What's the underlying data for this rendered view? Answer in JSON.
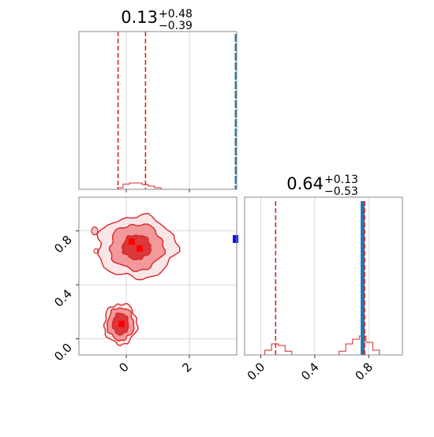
{
  "colors": {
    "red": "#d62728",
    "red_light": "#f08b8e",
    "blue": "#1f77b4",
    "marker_blue": "#1010ff",
    "marker_red": "#ff0000",
    "frame": "#8a8a8a",
    "grid": "#d0d0d0"
  },
  "chart_data": [
    {
      "type": "histogram",
      "panel": "top-left marginal",
      "title_value": "0.13",
      "title_plus": "+0.48",
      "title_minus": "−0.39",
      "xlim": [
        -1.5,
        3.5
      ],
      "grid": true,
      "quantile_lines": [
        -0.26,
        0.61
      ],
      "truth_line": 3.5,
      "bins_x": [
        -0.3,
        -0.1,
        0.1,
        0.3,
        0.5,
        0.7,
        0.9,
        1.1
      ],
      "bins_y": [
        0.003,
        0.01,
        0.012,
        0.012,
        0.009,
        0.006,
        0.003,
        0.0
      ]
    },
    {
      "type": "contour",
      "panel": "bottom-left 2D",
      "xlim": [
        -1.5,
        3.5
      ],
      "ylim": [
        -0.12,
        1.05
      ],
      "xticks": [
        0,
        2
      ],
      "xtick_labels": [
        "0",
        "2"
      ],
      "yticks": [
        0.0,
        0.4,
        0.8
      ],
      "ytick_labels": [
        "0.0",
        "0.4",
        "0.8"
      ],
      "grid": true,
      "upper_mode": {
        "center": [
          0.33,
          0.68
        ],
        "levels_radius": [
          [
            0.45,
            0.09
          ],
          [
            0.85,
            0.17
          ],
          [
            1.25,
            0.23
          ]
        ]
      },
      "lower_mode": {
        "center": [
          -0.18,
          0.11
        ],
        "levels_radius": [
          [
            0.25,
            0.08
          ],
          [
            0.42,
            0.12
          ],
          [
            0.52,
            0.15
          ]
        ]
      },
      "red_markers": [
        [
          0.17,
          0.72
        ],
        [
          0.42,
          0.67
        ],
        [
          -0.15,
          0.11
        ]
      ],
      "blue_marker": [
        3.5,
        0.74
      ]
    },
    {
      "type": "histogram",
      "panel": "bottom-right marginal",
      "title_value": "0.64",
      "title_plus": "+0.13",
      "title_minus": "−0.53",
      "xlim": [
        -0.12,
        1.05
      ],
      "xticks": [
        0.0,
        0.4,
        0.8
      ],
      "xtick_labels": [
        "0.0",
        "0.4",
        "0.8"
      ],
      "grid": true,
      "quantile_lines": [
        0.11,
        0.77
      ],
      "truth_line": 0.755,
      "bins_x": [
        -0.02,
        0.03,
        0.08,
        0.13,
        0.18,
        0.23,
        0.28,
        0.58,
        0.63,
        0.68,
        0.73,
        0.78,
        0.83,
        0.88
      ],
      "bins_y": [
        0.0,
        0.015,
        0.035,
        0.03,
        0.012,
        0.0,
        0.0,
        0.012,
        0.035,
        0.05,
        0.06,
        0.04,
        0.015,
        0.0
      ]
    }
  ]
}
